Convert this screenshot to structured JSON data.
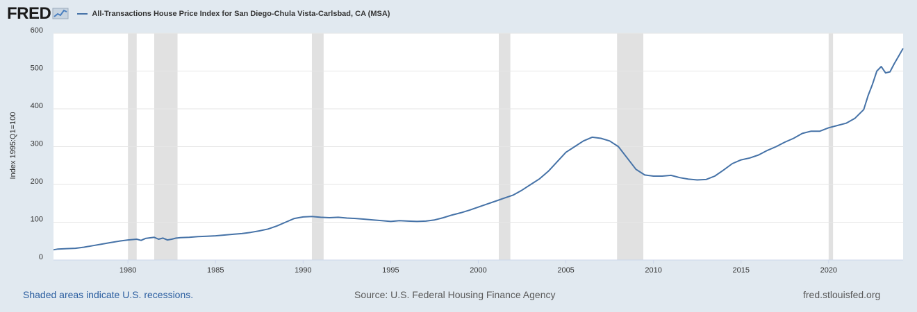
{
  "header": {
    "logo_text": "FRED",
    "logo_icon": "chart-line-icon"
  },
  "chart_data": {
    "type": "line",
    "title": "",
    "xlabel": "",
    "ylabel": "Index 1995:Q1=100",
    "xlim": [
      1975.75,
      2024.25
    ],
    "ylim": [
      0,
      600
    ],
    "x_ticks": [
      "1980",
      "1985",
      "1990",
      "1995",
      "2000",
      "2005",
      "2010",
      "2015",
      "2020"
    ],
    "y_ticks": [
      "0",
      "100",
      "200",
      "300",
      "400",
      "500",
      "600"
    ],
    "grid": true,
    "legend_position": "top-left",
    "recessions": [
      [
        1980.0,
        1980.5
      ],
      [
        1981.5,
        1982.83
      ],
      [
        1990.5,
        1991.17
      ],
      [
        2001.17,
        2001.83
      ],
      [
        2007.92,
        2009.42
      ],
      [
        2020.0,
        2020.25
      ]
    ],
    "series": [
      {
        "name": "All-Transactions House Price Index for San Diego-Chula Vista-Carlsbad, CA (MSA)",
        "color": "#4572a7",
        "x": [
          1975.75,
          1976.0,
          1976.5,
          1977.0,
          1977.5,
          1978.0,
          1978.5,
          1979.0,
          1979.5,
          1980.0,
          1980.5,
          1980.75,
          1981.0,
          1981.5,
          1981.75,
          1982.0,
          1982.25,
          1982.5,
          1982.75,
          1983.0,
          1983.5,
          1984.0,
          1984.5,
          1985.0,
          1985.5,
          1986.0,
          1986.5,
          1987.0,
          1987.5,
          1988.0,
          1988.5,
          1989.0,
          1989.5,
          1990.0,
          1990.5,
          1991.0,
          1991.5,
          1992.0,
          1992.5,
          1993.0,
          1993.5,
          1994.0,
          1994.5,
          1995.0,
          1995.5,
          1996.0,
          1996.5,
          1997.0,
          1997.5,
          1998.0,
          1998.5,
          1999.0,
          1999.5,
          2000.0,
          2000.5,
          2001.0,
          2001.5,
          2002.0,
          2002.5,
          2003.0,
          2003.5,
          2004.0,
          2004.5,
          2005.0,
          2005.5,
          2006.0,
          2006.5,
          2007.0,
          2007.5,
          2008.0,
          2008.5,
          2009.0,
          2009.5,
          2010.0,
          2010.5,
          2011.0,
          2011.5,
          2012.0,
          2012.5,
          2013.0,
          2013.5,
          2014.0,
          2014.5,
          2015.0,
          2015.5,
          2016.0,
          2016.5,
          2017.0,
          2017.5,
          2018.0,
          2018.5,
          2019.0,
          2019.5,
          2020.0,
          2020.5,
          2021.0,
          2021.5,
          2022.0,
          2022.25,
          2022.5,
          2022.75,
          2023.0,
          2023.25,
          2023.5,
          2023.75,
          2024.0,
          2024.25
        ],
        "values": [
          27,
          29,
          30,
          31,
          34,
          38,
          42,
          46,
          50,
          53,
          55,
          52,
          57,
          60,
          55,
          58,
          53,
          55,
          58,
          59,
          60,
          62,
          63,
          64,
          66,
          68,
          70,
          73,
          77,
          82,
          90,
          100,
          110,
          114,
          115,
          113,
          112,
          113,
          111,
          110,
          108,
          106,
          104,
          102,
          104,
          103,
          102,
          103,
          106,
          112,
          119,
          125,
          132,
          140,
          148,
          156,
          164,
          172,
          185,
          200,
          215,
          235,
          260,
          285,
          300,
          315,
          325,
          322,
          315,
          300,
          270,
          240,
          225,
          222,
          222,
          224,
          218,
          214,
          212,
          213,
          222,
          238,
          255,
          265,
          270,
          278,
          290,
          300,
          312,
          322,
          335,
          341,
          341,
          350,
          356,
          362,
          375,
          398,
          435,
          465,
          500,
          512,
          495,
          498,
          520,
          540,
          560
        ]
      }
    ]
  },
  "footer": {
    "left": "Shaded areas indicate U.S. recessions.",
    "center": "Source: U.S. Federal Housing Finance Agency",
    "right": "fred.stlouisfed.org"
  }
}
